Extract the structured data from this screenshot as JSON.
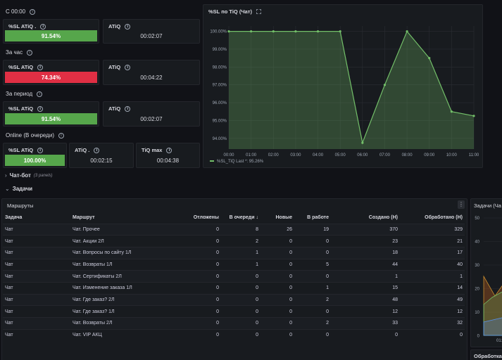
{
  "sections": {
    "since_midnight": "С 00:00",
    "per_hour": "За час",
    "per_period": "За период",
    "online": "Online (В очереди)"
  },
  "stats": {
    "row1": {
      "sl_label": "%SL ATiQ .",
      "sl_value": "91.54%",
      "sl_level": 91.54,
      "atiq_label": "ATiQ",
      "atiq_value": "00:02:07"
    },
    "row2": {
      "sl_label": "%SL ATiQ",
      "sl_value": "74.34%",
      "sl_level": 74.34,
      "atiq_label": "ATiQ",
      "atiq_value": "00:04:22"
    },
    "row3": {
      "sl_label": "%SL ATiQ",
      "sl_value": "91.54%",
      "sl_level": 91.54,
      "atiq_label": "ATiQ",
      "atiq_value": "00:02:07"
    },
    "row4": {
      "sl_label": "%SL ATiQ",
      "sl_value": "100.00%",
      "sl_level": 100,
      "atiq_label": "ATiQ .",
      "atiq_value": "00:02:15",
      "tiq_label": "TiQ max",
      "tiq_value": "00:04:38"
    }
  },
  "colors": {
    "ok": "#56a64b",
    "bad": "#e02f44",
    "line": "#73bf69"
  },
  "chart_panel_title": "%SL по TiQ (Чат)",
  "chart_data": {
    "type": "line",
    "title": "%SL по TiQ (Чат)",
    "x": [
      "00:00",
      "01:00",
      "02:00",
      "03:00",
      "04:00",
      "05:00",
      "06:00",
      "07:00",
      "08:00",
      "09:00",
      "10:00",
      "11:00"
    ],
    "series": [
      {
        "name": "%SL_TiQ",
        "values": [
          100.0,
          100.0,
          100.0,
          100.0,
          100.0,
          100.0,
          93.75,
          97.0,
          100.0,
          98.5,
          95.5,
          95.26
        ]
      }
    ],
    "y_ticks": [
      "100.00%",
      "99.00%",
      "98.00%",
      "97.00%",
      "96.00%",
      "95.00%",
      "94.00%"
    ],
    "ylim": [
      93.4,
      100.3
    ],
    "legend": "%SL_TiQ  Last *: 95.26%",
    "legend_position": "bottom-left",
    "grid": true
  },
  "collapsed_row": {
    "title": "Чат-бот",
    "subtitle": "(3 panels)"
  },
  "open_row": {
    "title": "Задачи"
  },
  "routes": {
    "title": "Маршруты",
    "columns": [
      "Задача",
      "Маршрут",
      "Отложены",
      "В очереди ↓",
      "Новые",
      "В работе",
      "Создано (Н)",
      "Обработано (Н)"
    ],
    "rows": [
      [
        "Чат",
        "Чат. Прочее",
        "0",
        "8",
        "26",
        "19",
        "370",
        "329"
      ],
      [
        "Чат",
        "Чат. Акции 2Л",
        "0",
        "2",
        "0",
        "0",
        "23",
        "21"
      ],
      [
        "Чат",
        "Чат. Вопросы по сайту 1Л",
        "0",
        "1",
        "0",
        "0",
        "18",
        "17"
      ],
      [
        "Чат",
        "Чат. Возвраты 1Л",
        "0",
        "1",
        "0",
        "5",
        "44",
        "40"
      ],
      [
        "Чат",
        "Чат. Сертификаты 2Л",
        "0",
        "0",
        "0",
        "0",
        "1",
        "1"
      ],
      [
        "Чат",
        "Чат. Изменение заказа 1Л",
        "0",
        "0",
        "0",
        "1",
        "15",
        "14"
      ],
      [
        "Чат",
        "Чат. Где заказ? 2Л",
        "0",
        "0",
        "0",
        "2",
        "48",
        "49"
      ],
      [
        "Чат",
        "Чат. Где заказ? 1Л",
        "0",
        "0",
        "0",
        "0",
        "12",
        "12"
      ],
      [
        "Чат",
        "Чат. Возвраты 2Л",
        "0",
        "0",
        "0",
        "2",
        "33",
        "32"
      ],
      [
        "Чат",
        "Чат. VIP АКЦ",
        "0",
        "0",
        "0",
        "0",
        "0",
        "0"
      ]
    ]
  },
  "right_panel": {
    "title": "Задачи (Ча",
    "y_ticks": [
      "50",
      "40",
      "30",
      "20",
      "10",
      "0"
    ],
    "x_tick": "01:",
    "bottom_title": "Обработка"
  }
}
